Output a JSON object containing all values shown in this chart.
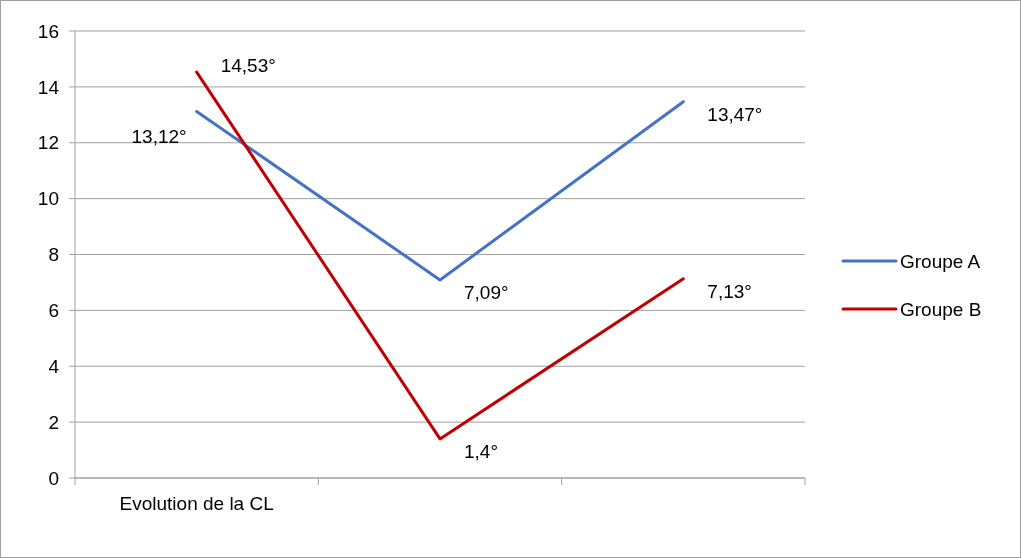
{
  "chart_data": {
    "type": "line",
    "categories": [
      "Evolution de la CL",
      null,
      null
    ],
    "series": [
      {
        "name": "Groupe A",
        "color": "#4472c4",
        "values": [
          13.12,
          7.09,
          13.47
        ],
        "value_labels": [
          "13,12°",
          "7,09°",
          "13,47°"
        ]
      },
      {
        "name": "Groupe B",
        "color": "#c00000",
        "values": [
          14.53,
          1.4,
          7.13
        ],
        "value_labels": [
          "14,53°",
          "1,4°",
          "7,13°"
        ]
      }
    ],
    "ylim": [
      0,
      16
    ],
    "yticks": [
      0,
      2,
      4,
      6,
      8,
      10,
      12,
      14,
      16
    ],
    "grid": "y",
    "legend": "right",
    "marker": "none",
    "line_style": "solid"
  }
}
